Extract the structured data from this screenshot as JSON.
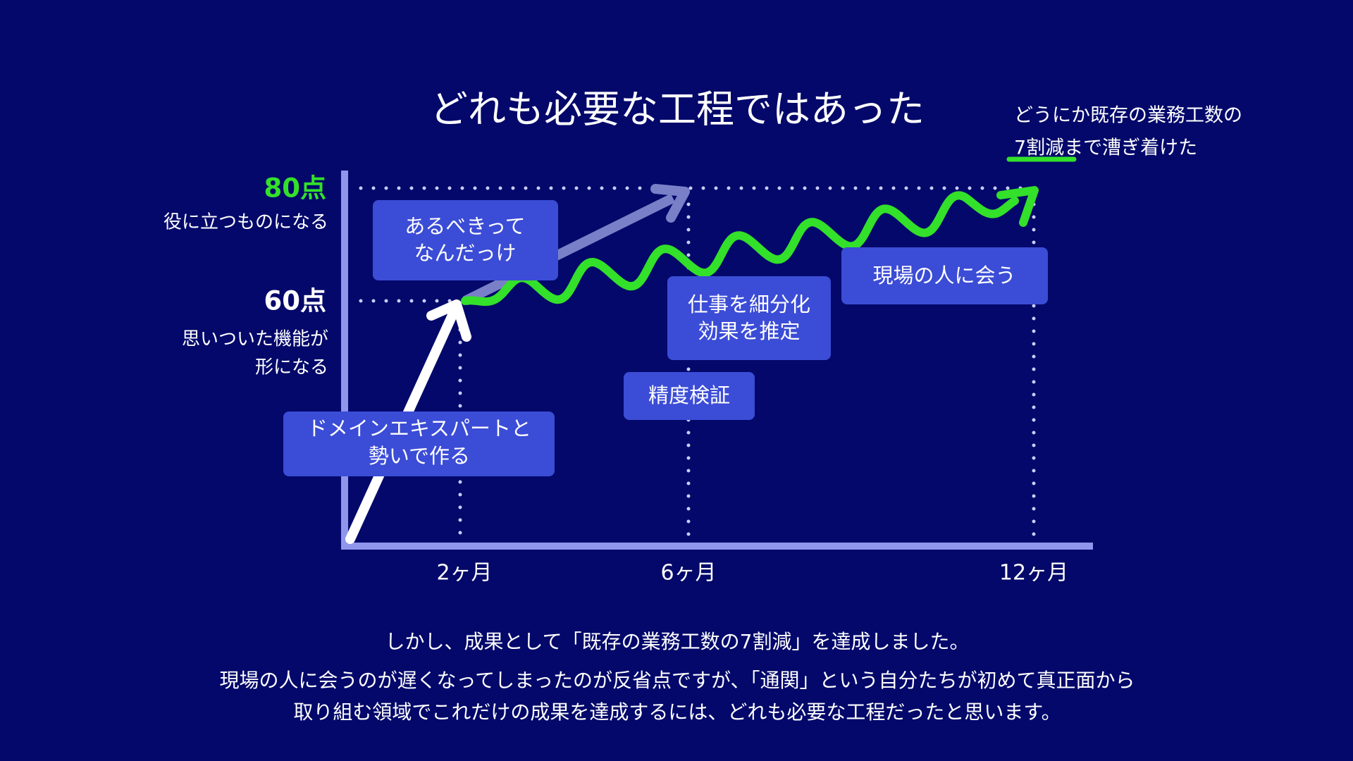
{
  "title": "どれも必要な工程ではあった",
  "note": {
    "lines": [
      "どうにか既存の業務工数の",
      "7割減まで漕ぎ着けた"
    ]
  },
  "y_labels": [
    {
      "score": "80点",
      "desc": [
        "役に立つものになる"
      ]
    },
    {
      "score": "60点",
      "desc": [
        "思いついた機能が",
        "形になる"
      ]
    }
  ],
  "x_labels": [
    "2ヶ月",
    "6ヶ月",
    "12ヶ月"
  ],
  "boxes": [
    {
      "lines": [
        "あるべきって",
        "なんだっけ"
      ]
    },
    {
      "lines": [
        "ドメインエキスパートと",
        "勢いで作る"
      ]
    },
    {
      "lines": [
        "仕事を細分化",
        "効果を推定"
      ]
    },
    {
      "lines": [
        "精度検証"
      ]
    },
    {
      "lines": [
        "現場の人に会う"
      ]
    }
  ],
  "footer": [
    "しかし、成果として「既存の業務工数の7割減」を達成しました。",
    "現場の人に会うのが遅くなってしまったのが反省点ですが、「通関」という自分たちが初めて真正面から",
    "取り組む領域でこれだけの成果を達成するには、どれも必要な工程だったと思います。"
  ]
}
